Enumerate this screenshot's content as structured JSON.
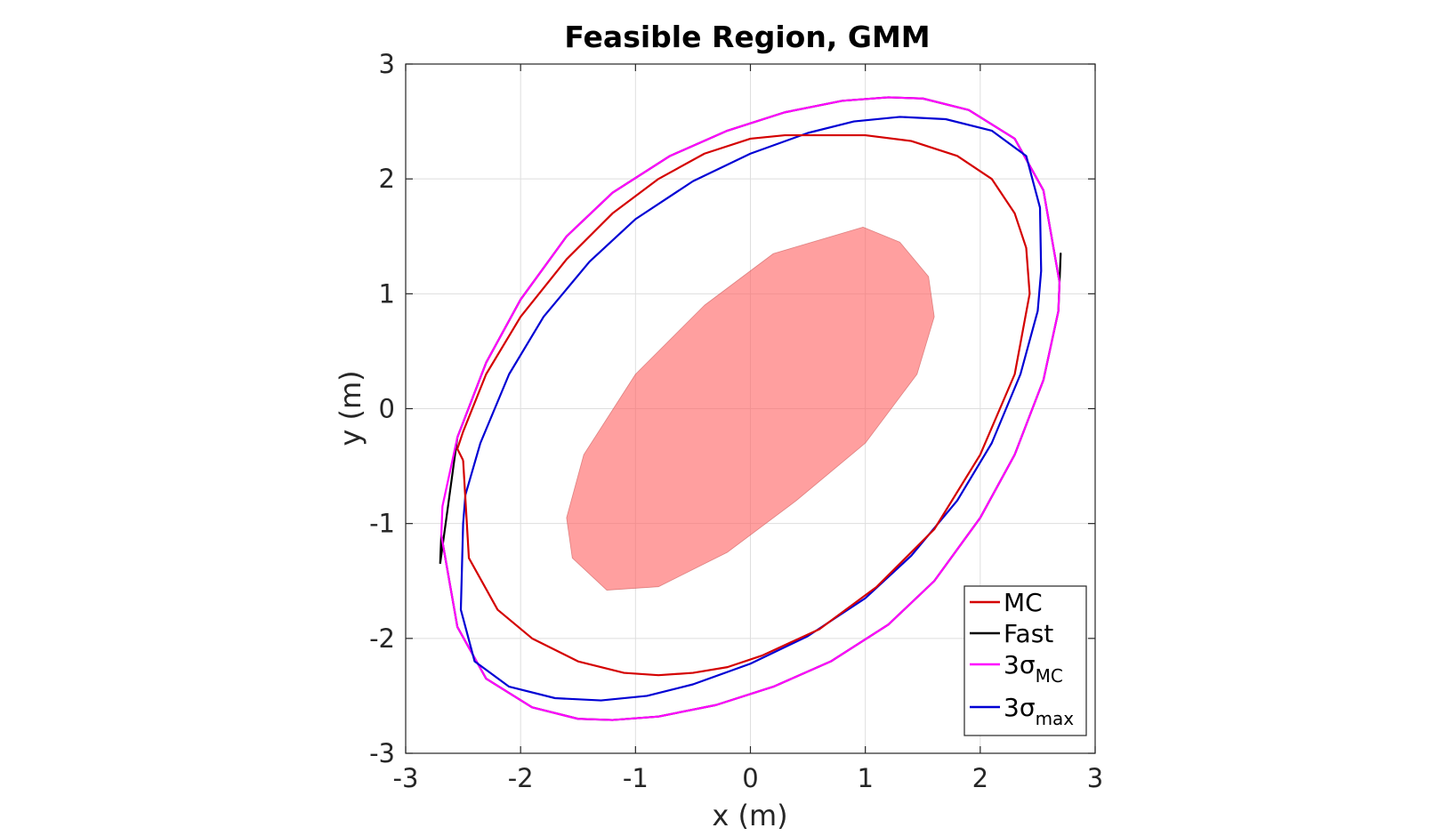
{
  "chart_data": {
    "type": "line",
    "title": "Feasible Region, GMM",
    "xlabel": "x (m)",
    "ylabel": "y (m)",
    "xlim": [
      -3,
      3
    ],
    "ylim": [
      -3,
      3
    ],
    "xticks": [
      -3,
      -2,
      -1,
      0,
      1,
      2,
      3
    ],
    "yticks": [
      -3,
      -2,
      -1,
      0,
      1,
      2,
      3
    ],
    "xtick_labels": [
      "-3",
      "-2",
      "-1",
      "0",
      "1",
      "2",
      "3"
    ],
    "ytick_labels": [
      "-3",
      "-2",
      "-1",
      "0",
      "1",
      "2",
      "3"
    ],
    "grid": true,
    "legend_position": "bottom-right",
    "legend": [
      {
        "base": "MC",
        "sub": "",
        "color": "#d40000"
      },
      {
        "base": "Fast",
        "sub": "",
        "color": "#000000"
      },
      {
        "base": "3σ",
        "sub": "MC",
        "color": "#ff00ff"
      },
      {
        "base": "3σ",
        "sub": "max",
        "color": "#0000d4"
      }
    ],
    "filled_region": {
      "color": "#ff5f5f",
      "opacity": 0.6,
      "x": [
        0.98,
        1.3,
        1.55,
        1.6,
        1.45,
        1.0,
        0.4,
        -0.2,
        -0.8,
        -1.25,
        -1.55,
        -1.6,
        -1.45,
        -1.0,
        -0.4,
        0.2,
        0.98
      ],
      "y": [
        1.58,
        1.45,
        1.15,
        0.8,
        0.3,
        -0.3,
        -0.8,
        -1.25,
        -1.55,
        -1.58,
        -1.3,
        -0.95,
        -0.4,
        0.3,
        0.9,
        1.35,
        1.58
      ]
    },
    "series": [
      {
        "name": "MC",
        "color": "#d40000",
        "x": [
          -2.5,
          -2.45,
          -2.2,
          -1.9,
          -1.5,
          -1.1,
          -0.8,
          -0.5,
          -0.2,
          0.1,
          0.6,
          1.1,
          1.6,
          2.0,
          2.3,
          2.43,
          2.4,
          2.3,
          2.1,
          1.8,
          1.4,
          1.0,
          0.6,
          0.3,
          0.0,
          -0.4,
          -0.8,
          -1.2,
          -1.6,
          -2.0,
          -2.3,
          -2.5,
          -2.55,
          -2.5
        ],
        "y": [
          -0.45,
          -1.3,
          -1.75,
          -2.0,
          -2.2,
          -2.3,
          -2.32,
          -2.3,
          -2.25,
          -2.15,
          -1.92,
          -1.55,
          -1.05,
          -0.4,
          0.3,
          1.0,
          1.4,
          1.7,
          2.0,
          2.2,
          2.33,
          2.38,
          2.38,
          2.38,
          2.35,
          2.22,
          2.0,
          1.7,
          1.3,
          0.8,
          0.3,
          -0.2,
          -0.35,
          -0.45
        ]
      },
      {
        "name": "Fast",
        "color": "#000000",
        "x": [
          -2.7,
          -2.69,
          -2.55,
          -2.3,
          -1.9,
          -1.5,
          -1.2,
          -0.8,
          -0.3,
          0.2,
          0.7,
          1.2,
          1.6,
          2.0,
          2.3,
          2.55,
          2.68,
          2.7,
          2.69,
          2.55,
          2.3,
          1.9,
          1.5,
          1.2,
          0.8,
          0.3,
          -0.2,
          -0.7,
          -1.2,
          -1.6,
          -2.0,
          -2.3,
          -2.55,
          -2.7
        ],
        "y": [
          -1.35,
          -1.1,
          -1.9,
          -2.35,
          -2.6,
          -2.7,
          -2.71,
          -2.68,
          -2.58,
          -2.42,
          -2.2,
          -1.88,
          -1.5,
          -0.95,
          -0.4,
          0.25,
          0.85,
          1.35,
          1.1,
          1.9,
          2.35,
          2.6,
          2.7,
          2.71,
          2.68,
          2.58,
          2.42,
          2.2,
          1.88,
          1.5,
          0.95,
          0.4,
          -0.25,
          -1.35
        ]
      },
      {
        "name": "3σ_MC",
        "color": "#ff00ff",
        "x": [
          -2.69,
          -2.55,
          -2.3,
          -1.9,
          -1.5,
          -1.2,
          -0.8,
          -0.3,
          0.2,
          0.7,
          1.2,
          1.6,
          2.0,
          2.3,
          2.55,
          2.68,
          2.69,
          2.55,
          2.3,
          1.9,
          1.5,
          1.2,
          0.8,
          0.3,
          -0.2,
          -0.7,
          -1.2,
          -1.6,
          -2.0,
          -2.3,
          -2.55,
          -2.68,
          -2.69
        ],
        "y": [
          -1.1,
          -1.9,
          -2.35,
          -2.6,
          -2.7,
          -2.71,
          -2.68,
          -2.58,
          -2.42,
          -2.2,
          -1.88,
          -1.5,
          -0.95,
          -0.4,
          0.25,
          0.85,
          1.1,
          1.9,
          2.35,
          2.6,
          2.7,
          2.71,
          2.68,
          2.58,
          2.42,
          2.2,
          1.88,
          1.5,
          0.95,
          0.4,
          -0.25,
          -0.85,
          -1.1
        ]
      },
      {
        "name": "3σ_max",
        "color": "#0000d4",
        "x": [
          -2.5,
          -2.52,
          -2.4,
          -2.1,
          -1.7,
          -1.3,
          -0.9,
          -0.5,
          0.0,
          0.5,
          1.0,
          1.4,
          1.8,
          2.1,
          2.35,
          2.5,
          2.53,
          2.52,
          2.4,
          2.1,
          1.7,
          1.3,
          0.9,
          0.5,
          0.0,
          -0.5,
          -1.0,
          -1.4,
          -1.8,
          -2.1,
          -2.35,
          -2.48,
          -2.5
        ],
        "y": [
          -1.0,
          -1.75,
          -2.2,
          -2.42,
          -2.52,
          -2.54,
          -2.5,
          -2.4,
          -2.22,
          -1.98,
          -1.65,
          -1.28,
          -0.8,
          -0.3,
          0.3,
          0.85,
          1.2,
          1.75,
          2.2,
          2.42,
          2.52,
          2.54,
          2.5,
          2.4,
          2.22,
          1.98,
          1.65,
          1.28,
          0.8,
          0.3,
          -0.3,
          -0.75,
          -1.0
        ]
      }
    ]
  }
}
